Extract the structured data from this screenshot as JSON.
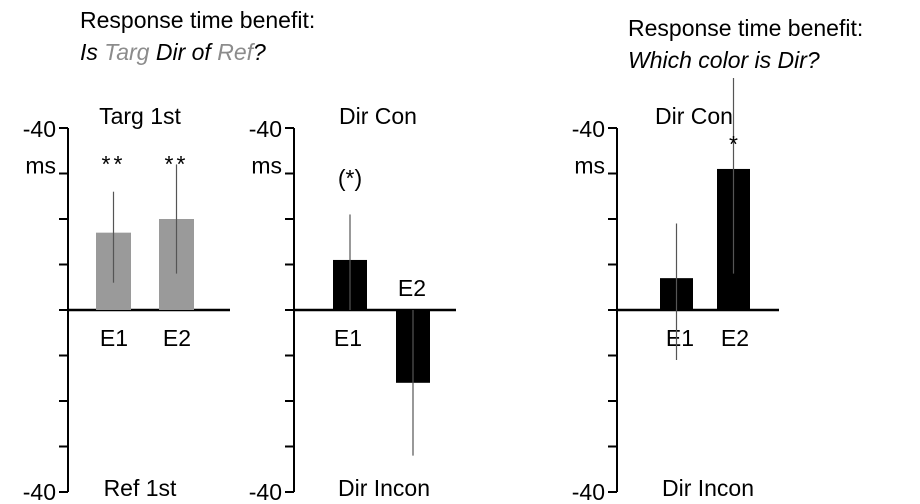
{
  "headings": {
    "left_line1": "Response time benefit:",
    "left_line2": [
      {
        "text": "Is ",
        "color": "#000000"
      },
      {
        "text": "Targ",
        "color": "#8c8c8c"
      },
      {
        "text": " Dir of ",
        "color": "#000000"
      },
      {
        "text": "Ref",
        "color": "#8c8c8c"
      },
      {
        "text": "?",
        "color": "#000000"
      }
    ],
    "right_line1": "Response time benefit:",
    "right_line2": "Which color is Dir?"
  },
  "colors": {
    "gray_bar": "#9a9a9a",
    "black_bar": "#000000",
    "gray_text": "#8c8c8c",
    "error_bar": "#555555"
  },
  "chart_data": [
    {
      "type": "bar",
      "categories": [
        "E1",
        "E2"
      ],
      "values": [
        -17,
        -20
      ],
      "errors": [
        [
          -26,
          -6
        ],
        [
          -32,
          -8
        ]
      ],
      "significance": [
        "**",
        "**"
      ],
      "y_top_label": "-40",
      "y_unit": "ms",
      "y_bottom_label": "-40",
      "top_text": "Targ 1st",
      "bottom_text": "Ref 1st",
      "ylim": [
        -40,
        40
      ],
      "tick_step": 10
    },
    {
      "type": "bar",
      "categories": [
        "E1",
        "E2"
      ],
      "values": [
        -11,
        16
      ],
      "errors": [
        [
          -21,
          0
        ],
        [
          0,
          32
        ]
      ],
      "significance": [
        "(*)",
        ""
      ],
      "y_top_label": "-40",
      "y_unit": "ms",
      "y_bottom_label": "-40",
      "top_text": "Dir Con",
      "bottom_text": "Dir Incon",
      "ylim": [
        -40,
        40
      ],
      "tick_step": 10
    },
    {
      "type": "bar",
      "categories": [
        "E1",
        "E2"
      ],
      "values": [
        -7,
        -31
      ],
      "errors": [
        [
          -19,
          11
        ],
        [
          -51,
          -8
        ]
      ],
      "significance": [
        "",
        "*"
      ],
      "y_top_label": "-40",
      "y_unit": "ms",
      "y_bottom_label": "-40",
      "top_text": "Dir Con",
      "bottom_text": "Dir Incon",
      "ylim": [
        -40,
        40
      ],
      "tick_step": 10
    }
  ]
}
